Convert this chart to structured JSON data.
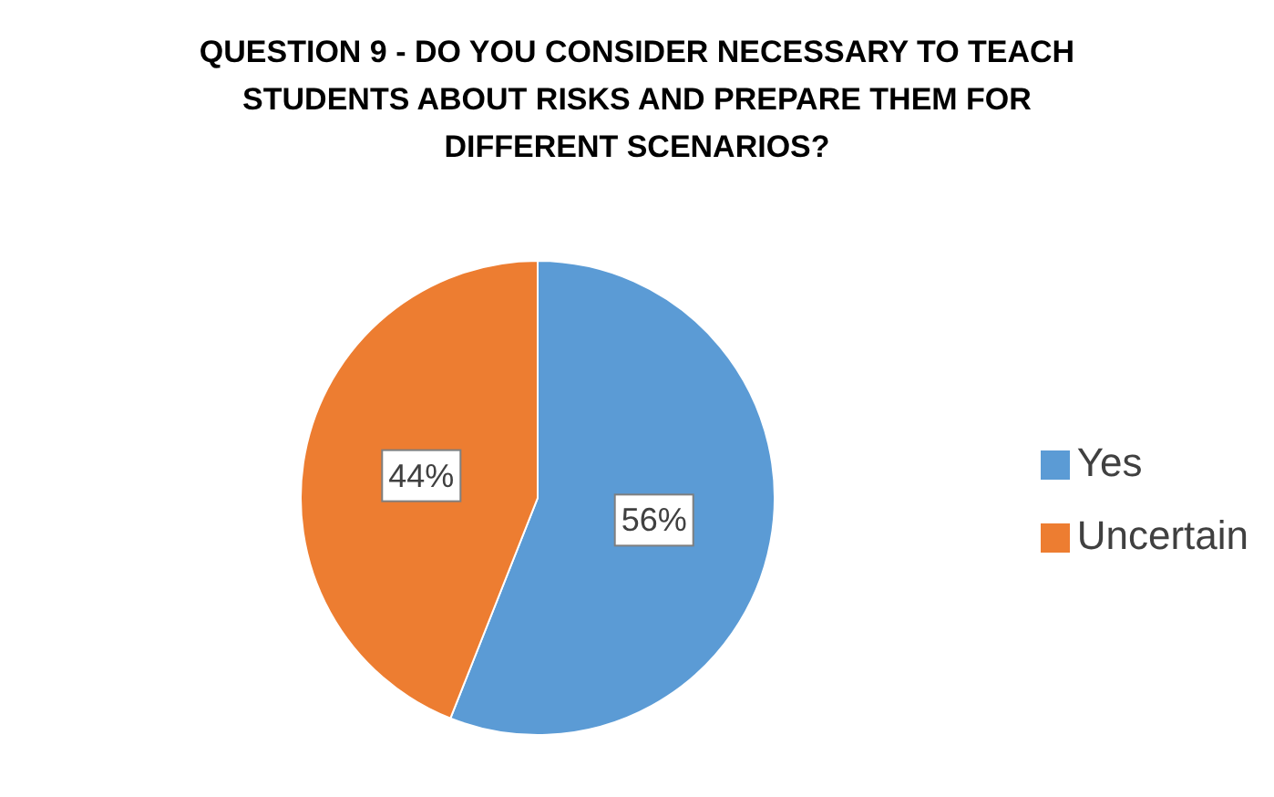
{
  "chart_data": {
    "type": "pie",
    "title": "QUESTION 9 - DO YOU CONSIDER NECESSARY TO TEACH STUDENTS ABOUT RISKS AND PREPARE THEM FOR DIFFERENT SCENARIOS?",
    "categories": [
      "Yes",
      "Uncertain"
    ],
    "values": [
      56,
      44
    ],
    "colors": [
      "#5b9bd5",
      "#ed7d31"
    ],
    "value_labels": [
      "56%",
      "44%"
    ],
    "legend": "right"
  }
}
